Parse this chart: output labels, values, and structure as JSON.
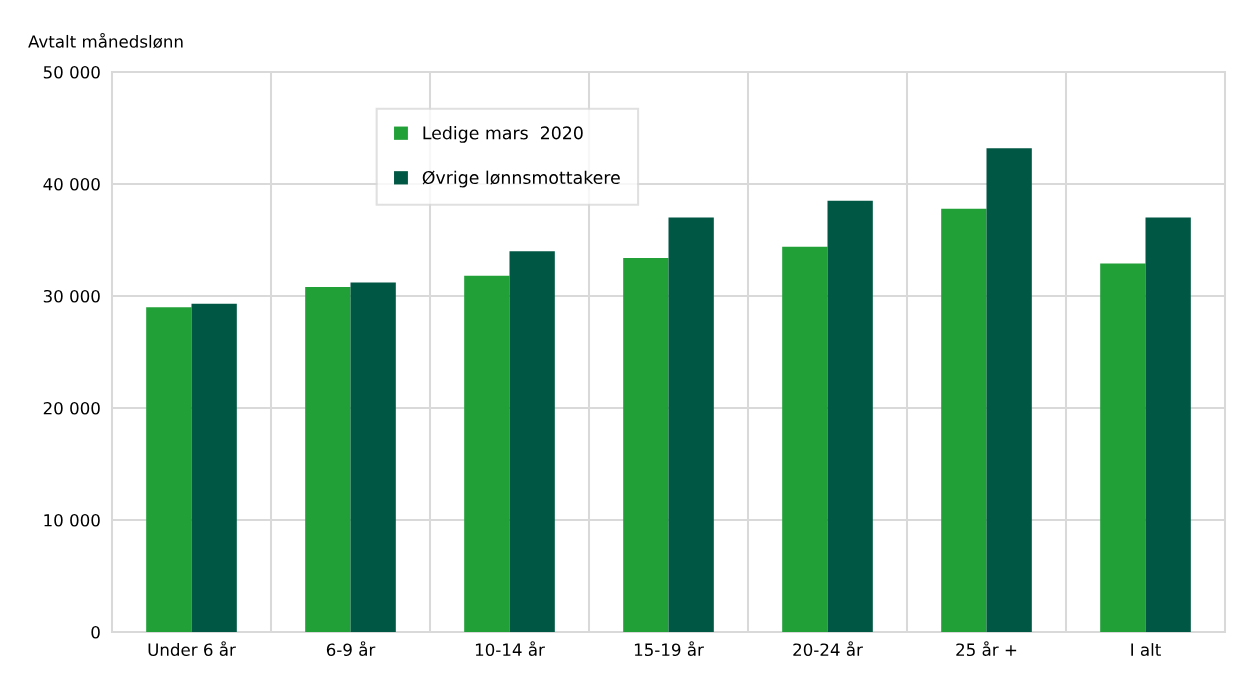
{
  "chart_data": {
    "type": "bar",
    "ylabel": "Avtalt månedslønn",
    "categories": [
      "Under 6 år",
      "6-9 år",
      "10-14 år",
      "15-19 år",
      "20-24 år",
      "25 år +",
      "I alt"
    ],
    "series": [
      {
        "name": "Ledige mars  2020",
        "color": "#22a038",
        "values": [
          29000,
          30800,
          31800,
          33400,
          34400,
          37800,
          32900
        ]
      },
      {
        "name": "Øvrige lønnsmottakere",
        "color": "#005744",
        "values": [
          29300,
          31200,
          34000,
          37000,
          38500,
          43200,
          37000
        ]
      }
    ],
    "ylim": [
      0,
      50000
    ],
    "yticks": [
      {
        "value": 0,
        "label": "0"
      },
      {
        "value": 10000,
        "label": "10 000"
      },
      {
        "value": 20000,
        "label": "20 000"
      },
      {
        "value": 30000,
        "label": "30 000"
      },
      {
        "value": 40000,
        "label": "40 000"
      },
      {
        "value": 50000,
        "label": "50 000"
      }
    ],
    "grid": true,
    "legend": "top left"
  }
}
